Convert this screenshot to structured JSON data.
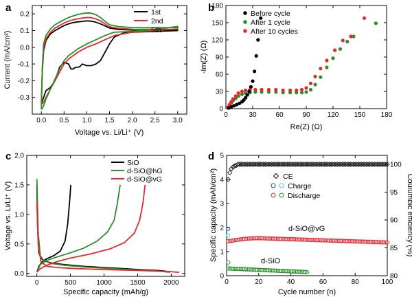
{
  "chart_data": [
    {
      "panel": "a",
      "type": "line",
      "xlabel": "Voltage vs. Li/Li⁺ (V)",
      "ylabel": "Current (mA/cm²)",
      "xlim": [
        -0.2,
        3.2
      ],
      "ylim": [
        -0.4,
        0.25
      ],
      "xticks": [
        0.0,
        0.5,
        1.0,
        1.5,
        2.0,
        2.5,
        3.0
      ],
      "xtick_labels": [
        "0.0",
        "0.5",
        "1.0",
        "1.5",
        "2.0",
        "2.5",
        "3.0"
      ],
      "yticks": [
        -0.3,
        -0.2,
        -0.1,
        0.0,
        0.1,
        0.2
      ],
      "ytick_labels": [
        "-0.3",
        "-0.2",
        "-0.1",
        "0.0",
        "0.1",
        "0.2"
      ],
      "legend_position": "top-right",
      "series": [
        {
          "name": "1st",
          "color": "#000000",
          "x": [
            0.0,
            0.02,
            0.05,
            0.1,
            0.2,
            0.3,
            0.4,
            0.5,
            0.6,
            0.7,
            0.8,
            0.9,
            1.0,
            1.1,
            1.2,
            1.3,
            1.4,
            1.5,
            1.7,
            2.0,
            2.5,
            3.0,
            3.0,
            2.5,
            2.0,
            1.8,
            1.6,
            1.5,
            1.4,
            1.3,
            1.2,
            1.1,
            1.0,
            0.9,
            0.85,
            0.8,
            0.75,
            0.7,
            0.65,
            0.6,
            0.5,
            0.4,
            0.3,
            0.2,
            0.1,
            0.05,
            0.01
          ],
          "y": [
            -0.33,
            -0.15,
            -0.02,
            0.04,
            0.08,
            0.1,
            0.115,
            0.13,
            0.14,
            0.148,
            0.152,
            0.155,
            0.158,
            0.156,
            0.15,
            0.14,
            0.128,
            0.115,
            0.107,
            0.103,
            0.102,
            0.102,
            0.1,
            0.095,
            0.09,
            0.085,
            0.06,
            0.02,
            -0.03,
            -0.08,
            -0.1,
            -0.11,
            -0.11,
            -0.1,
            -0.115,
            -0.12,
            -0.12,
            -0.13,
            -0.13,
            -0.1,
            -0.09,
            -0.12,
            -0.2,
            -0.24,
            -0.26,
            -0.3,
            -0.33
          ]
        },
        {
          "name": "2nd",
          "color": "#e8262d",
          "x": [
            0.0,
            0.02,
            0.05,
            0.1,
            0.2,
            0.3,
            0.4,
            0.5,
            0.6,
            0.7,
            0.8,
            0.9,
            1.0,
            1.1,
            1.2,
            1.3,
            1.4,
            1.5,
            1.7,
            2.0,
            2.5,
            3.0,
            3.0,
            2.5,
            2.0,
            1.6,
            1.4,
            1.2,
            1.0,
            0.8,
            0.6,
            0.5,
            0.4,
            0.3,
            0.2,
            0.1,
            0.05,
            0.01
          ],
          "y": [
            -0.34,
            -0.14,
            0.0,
            0.05,
            0.09,
            0.115,
            0.13,
            0.145,
            0.156,
            0.165,
            0.17,
            0.175,
            0.178,
            0.177,
            0.17,
            0.158,
            0.14,
            0.123,
            0.113,
            0.108,
            0.107,
            0.108,
            0.11,
            0.1,
            0.09,
            0.07,
            0.045,
            0.02,
            0.0,
            -0.03,
            -0.07,
            -0.1,
            -0.15,
            -0.2,
            -0.25,
            -0.3,
            -0.33,
            -0.34
          ]
        },
        {
          "name": "5th",
          "color": "#2a8c2a",
          "x": [
            0.0,
            0.02,
            0.05,
            0.1,
            0.2,
            0.3,
            0.4,
            0.5,
            0.6,
            0.7,
            0.8,
            0.9,
            1.0,
            1.1,
            1.2,
            1.3,
            1.4,
            1.5,
            1.7,
            2.0,
            2.5,
            3.0,
            3.0,
            2.5,
            2.0,
            1.6,
            1.4,
            1.2,
            1.0,
            0.8,
            0.6,
            0.5,
            0.4,
            0.3,
            0.2,
            0.1,
            0.05,
            0.01
          ],
          "y": [
            -0.37,
            -0.12,
            0.02,
            0.07,
            0.11,
            0.135,
            0.15,
            0.165,
            0.178,
            0.188,
            0.196,
            0.202,
            0.205,
            0.204,
            0.195,
            0.178,
            0.155,
            0.135,
            0.124,
            0.118,
            0.117,
            0.118,
            0.125,
            0.105,
            0.095,
            0.09,
            0.07,
            0.045,
            0.02,
            -0.01,
            -0.05,
            -0.08,
            -0.13,
            -0.19,
            -0.25,
            -0.31,
            -0.35,
            -0.37
          ]
        }
      ]
    },
    {
      "panel": "b",
      "type": "scatter",
      "xlabel": "Re(Z) (Ω)",
      "ylabel": "-Im(Z) (Ω)",
      "xlim": [
        0,
        180
      ],
      "ylim": [
        0,
        180
      ],
      "xticks": [
        0,
        30,
        60,
        90,
        120,
        150,
        180
      ],
      "xtick_labels": [
        "0",
        "30",
        "60",
        "90",
        "120",
        "150",
        "180"
      ],
      "yticks": [
        0,
        30,
        60,
        90,
        120,
        150,
        180
      ],
      "ytick_labels": [
        "0",
        "30",
        "60",
        "90",
        "120",
        "150",
        "180"
      ],
      "legend_position": "top-left",
      "series": [
        {
          "name": "Before cycle",
          "color": "#000000",
          "x": [
            3,
            6,
            9,
            12,
            15,
            18,
            20,
            22,
            24,
            26,
            28,
            30,
            32,
            34,
            36,
            39
          ],
          "y": [
            1,
            3,
            5,
            7,
            9,
            12,
            15,
            19,
            24,
            30,
            38,
            48,
            65,
            92,
            120,
            158
          ]
        },
        {
          "name": "After 1 cycle",
          "color": "#2a8c2a",
          "x": [
            2,
            4,
            6,
            8,
            11,
            14,
            18,
            22,
            27,
            33,
            40,
            48,
            56,
            64,
            72,
            79,
            85,
            90,
            95,
            100,
            106,
            113,
            120,
            128,
            136,
            143,
            168
          ],
          "y": [
            2,
            6,
            10,
            14,
            18,
            22,
            25,
            27,
            28,
            29,
            29,
            29,
            29,
            28,
            28,
            28,
            28,
            29,
            33,
            42,
            55,
            72,
            88,
            104,
            117,
            126,
            149
          ]
        },
        {
          "name": "After 10 cycles",
          "color": "#e8262d",
          "x": [
            2,
            4,
            6,
            8,
            11,
            14,
            18,
            22,
            27,
            33,
            40,
            48,
            56,
            64,
            72,
            79,
            85,
            90,
            95,
            100,
            106,
            113,
            122,
            131,
            140,
            155
          ],
          "y": [
            2,
            7,
            12,
            17,
            22,
            27,
            30,
            32,
            33,
            33,
            33,
            33,
            33,
            32,
            32,
            32,
            33,
            36,
            44,
            56,
            70,
            84,
            102,
            119,
            126,
            158
          ]
        }
      ]
    },
    {
      "panel": "c",
      "type": "line",
      "xlabel": "Specific capacity (mAh/g)",
      "ylabel": "Voltage vs. Li/Li⁺ (V)",
      "xlim": [
        -150,
        2200
      ],
      "ylim": [
        -0.05,
        2.0
      ],
      "xticks": [
        0,
        500,
        1000,
        1500,
        2000
      ],
      "xtick_labels": [
        "0",
        "500",
        "1000",
        "1500",
        "2000"
      ],
      "yticks": [
        0.0,
        0.5,
        1.0,
        1.5,
        2.0
      ],
      "ytick_labels": [
        "0.0",
        "0.5",
        "1.0",
        "1.5",
        "2.0"
      ],
      "legend_position": "top-center",
      "series": [
        {
          "name": "SiO",
          "color": "#000000",
          "discharge": {
            "x": [
              0,
              10,
              30,
              60,
              100,
              200,
              400,
              700,
              1000,
              1300,
              1600,
              1800,
              1900,
              1950,
              1980
            ],
            "y": [
              1.5,
              0.8,
              0.35,
              0.26,
              0.22,
              0.18,
              0.15,
              0.12,
              0.1,
              0.08,
              0.06,
              0.05,
              0.04,
              0.03,
              0.02
            ]
          },
          "charge": {
            "x": [
              0,
              30,
              80,
              150,
              250,
              350,
              420,
              460,
              490,
              505
            ],
            "y": [
              0.02,
              0.12,
              0.2,
              0.25,
              0.3,
              0.38,
              0.55,
              0.85,
              1.25,
              1.5
            ]
          }
        },
        {
          "name": "d-SiO@hG",
          "color": "#2a8c2a",
          "discharge": {
            "x": [
              0,
              20,
              50,
              100,
              200,
              400,
              700,
              1000,
              1300,
              1600,
              1800,
              1900,
              1950
            ],
            "y": [
              1.6,
              0.7,
              0.3,
              0.22,
              0.17,
              0.14,
              0.11,
              0.09,
              0.07,
              0.05,
              0.04,
              0.03,
              0.02
            ]
          },
          "charge": {
            "x": [
              0,
              50,
              150,
              300,
              500,
              700,
              900,
              1050,
              1150,
              1200,
              1240
            ],
            "y": [
              0.02,
              0.15,
              0.22,
              0.28,
              0.35,
              0.43,
              0.55,
              0.7,
              0.9,
              1.2,
              1.5
            ]
          }
        },
        {
          "name": "d-SiO@vG",
          "color": "#e8262d",
          "discharge": {
            "x": [
              0,
              20,
              60,
              150,
              300,
              600,
              900,
              1200,
              1500,
              1800,
              2000,
              2080,
              2120
            ],
            "y": [
              1.2,
              0.5,
              0.2,
              0.12,
              0.1,
              0.08,
              0.07,
              0.06,
              0.05,
              0.04,
              0.03,
              0.02,
              0.02
            ]
          },
          "charge": {
            "x": [
              0,
              50,
              150,
              300,
              500,
              800,
              1100,
              1300,
              1450,
              1530,
              1580,
              1610
            ],
            "y": [
              0.02,
              0.08,
              0.14,
              0.2,
              0.26,
              0.33,
              0.42,
              0.52,
              0.68,
              0.9,
              1.2,
              1.5
            ]
          }
        }
      ]
    },
    {
      "panel": "d",
      "type": "scatter",
      "xlabel": "Cycle number (n)",
      "ylabel": "Specific capacity (mAh/cm²)",
      "ylabel_right": "Coulumbic efficiency (%)",
      "xlim": [
        0,
        100
      ],
      "ylim": [
        0,
        5
      ],
      "ylim_right": [
        80,
        101.6
      ],
      "xticks": [
        0,
        20,
        40,
        60,
        80,
        100
      ],
      "xtick_labels": [
        "0",
        "20",
        "40",
        "60",
        "80",
        "100"
      ],
      "yticks": [
        0,
        1,
        2,
        3,
        4,
        5
      ],
      "ytick_labels": [
        "0",
        "1",
        "2",
        "3",
        "4",
        "5"
      ],
      "yticks_right": [
        80,
        85,
        90,
        95,
        100
      ],
      "ytick_labels_right": [
        "80",
        "85",
        "90",
        "95",
        "100"
      ],
      "legend_entries": [
        "CE",
        "Charge",
        "Discharge"
      ],
      "legend_colors": {
        "ce": "#000000",
        "charge": "#1f3fd1",
        "charge2": "#3ec8e8",
        "discharge": "#e8262d",
        "discharge2": "#2a8c2a"
      },
      "annotations": [
        "d-SiO@vG",
        "d-SiO"
      ],
      "ce_series": {
        "n_start": 1,
        "n_end": 100,
        "values_head": [
          97.3,
          98.5,
          99.2,
          99.5,
          99.7,
          99.8
        ],
        "plateau": 100.0
      },
      "vg_series": {
        "n_start": 1,
        "n_end": 100,
        "first_charge": 1.67,
        "first_discharge": 1.95,
        "peak_cycle": 20,
        "peak": 1.56,
        "start": 1.42,
        "end": 1.38
      },
      "sio_series": {
        "n_start": 1,
        "n_end": 50,
        "first_charge": 0.28,
        "first_discharge": 0.55,
        "start": 0.3,
        "end": 0.15
      }
    }
  ],
  "labels": {
    "panel_a": "a",
    "panel_b": "b",
    "panel_c": "c",
    "panel_d": "d",
    "legend_a": [
      "1st",
      "2nd",
      "5th"
    ],
    "legend_b": [
      "Before cycle",
      "After 1 cycle",
      "After 10 cycles"
    ],
    "legend_c": [
      "SiO",
      "d-SiO@hG",
      "d-SiO@vG"
    ],
    "legend_d": [
      "CE",
      "Charge",
      "Discharge"
    ],
    "annot_vg": "d-SiO@vG",
    "annot_sio": "d-SiO"
  }
}
